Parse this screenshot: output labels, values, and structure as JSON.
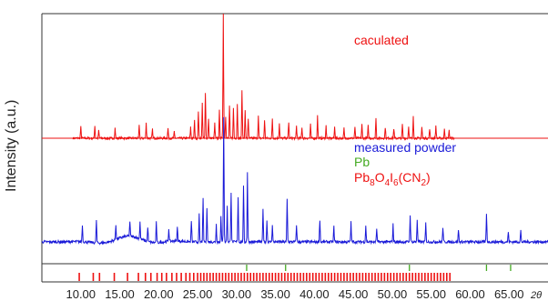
{
  "chart_data": {
    "type": "line",
    "ylabel": "Intensity (a.u.)",
    "xlabel": "2θ",
    "xlim": [
      5.0,
      70.0
    ],
    "xticks": [
      "10.00",
      "15.00",
      "20.00",
      "25.00",
      "30.00",
      "35.00",
      "40.00",
      "45.00",
      "50.00",
      "55.00",
      "60.00",
      "65.00"
    ],
    "grid": false,
    "annotations": {
      "calculated": "caculated",
      "measured": "measured powder",
      "pb": "Pb",
      "compound": "Pb8O4I6(CN2)"
    },
    "colors": {
      "calculated": "#ee1111",
      "measured": "#1a1ad8",
      "pb": "#44aa22",
      "frame": "#333333"
    },
    "series": [
      {
        "name": "caculated",
        "color": "#ee1111",
        "x": [
          10.0,
          11.8,
          12.3,
          14.4,
          17.5,
          18.4,
          19.2,
          21.2,
          22.0,
          24.1,
          24.6,
          25.1,
          25.6,
          26.0,
          26.4,
          27.2,
          27.8,
          28.3,
          28.6,
          29.1,
          29.6,
          30.1,
          30.7,
          31.1,
          31.5,
          32.8,
          33.6,
          34.6,
          35.5,
          36.7,
          37.7,
          38.4,
          39.5,
          40.4,
          41.5,
          42.6,
          43.8,
          45.2,
          46.1,
          46.9,
          47.9,
          49.1,
          50.2,
          51.3,
          52.1,
          52.7,
          53.8,
          54.8,
          55.6,
          56.7,
          57.3
        ],
        "values": [
          9,
          10,
          6,
          8,
          10,
          12,
          7,
          8,
          5,
          9,
          14,
          22,
          28,
          36,
          16,
          12,
          22,
          100,
          18,
          26,
          24,
          28,
          38,
          22,
          16,
          18,
          14,
          16,
          12,
          13,
          10,
          9,
          11,
          18,
          10,
          9,
          8,
          9,
          11,
          10,
          16,
          9,
          8,
          11,
          10,
          18,
          9,
          8,
          10,
          7,
          6
        ]
      },
      {
        "name": "measured powder",
        "color": "#1a1ad8",
        "x": [
          10.2,
          12.0,
          14.5,
          16.3,
          17.6,
          18.6,
          19.7,
          21.3,
          22.4,
          24.2,
          25.2,
          25.7,
          26.2,
          27.4,
          28.0,
          28.35,
          28.8,
          29.3,
          30.2,
          30.9,
          31.4,
          33.4,
          33.9,
          34.6,
          36.5,
          37.7,
          40.7,
          42.5,
          44.7,
          46.6,
          48.0,
          50.1,
          52.3,
          53.2,
          54.3,
          56.5,
          58.5,
          62.1,
          64.9,
          66.5
        ],
        "values": [
          14,
          18,
          12,
          12,
          14,
          12,
          16,
          10,
          11,
          17,
          22,
          34,
          28,
          14,
          20,
          100,
          28,
          40,
          36,
          44,
          56,
          26,
          18,
          14,
          34,
          14,
          18,
          12,
          16,
          13,
          11,
          14,
          22,
          18,
          15,
          12,
          10,
          22,
          8,
          9
        ]
      },
      {
        "name": "Pb",
        "color": "#44aa22",
        "type": "reflections",
        "x": [
          31.3,
          36.3,
          52.2,
          62.1,
          65.2
        ]
      },
      {
        "name": "Pb8O4I6(CN2)",
        "color": "#ee1111",
        "type": "reflections",
        "x": [
          9.8,
          11.6,
          12.4,
          14.3,
          16.0,
          17.4,
          18.3,
          19.0,
          19.8,
          20.4,
          21.0,
          21.7,
          22.3,
          22.9,
          23.5,
          24.0,
          24.5,
          25.0,
          25.4,
          25.8,
          26.2,
          26.6,
          27.0,
          27.4,
          27.8,
          28.2,
          28.6,
          29.0,
          29.4,
          29.8,
          30.2,
          30.6,
          31.0,
          31.4,
          31.8,
          32.2,
          32.6,
          33.0,
          33.4,
          33.8,
          34.2,
          34.6,
          35.0,
          35.4,
          35.8,
          36.2,
          36.6,
          37.0,
          37.4,
          37.8,
          38.2,
          38.6,
          39.0,
          39.4,
          39.8,
          40.2,
          40.6,
          41.0,
          41.4,
          41.8,
          42.2,
          42.6,
          43.0,
          43.4,
          43.8,
          44.2,
          44.6,
          45.0,
          45.4,
          45.8,
          46.2,
          46.6,
          47.0,
          47.4,
          47.8,
          48.2,
          48.6,
          49.0,
          49.4,
          49.8,
          50.2,
          50.6,
          51.0,
          51.4,
          51.8,
          52.2,
          52.6,
          53.0,
          53.4,
          53.8,
          54.2,
          54.6,
          55.0,
          55.4,
          55.8,
          56.2,
          56.6,
          57.0,
          57.4
        ]
      }
    ]
  }
}
